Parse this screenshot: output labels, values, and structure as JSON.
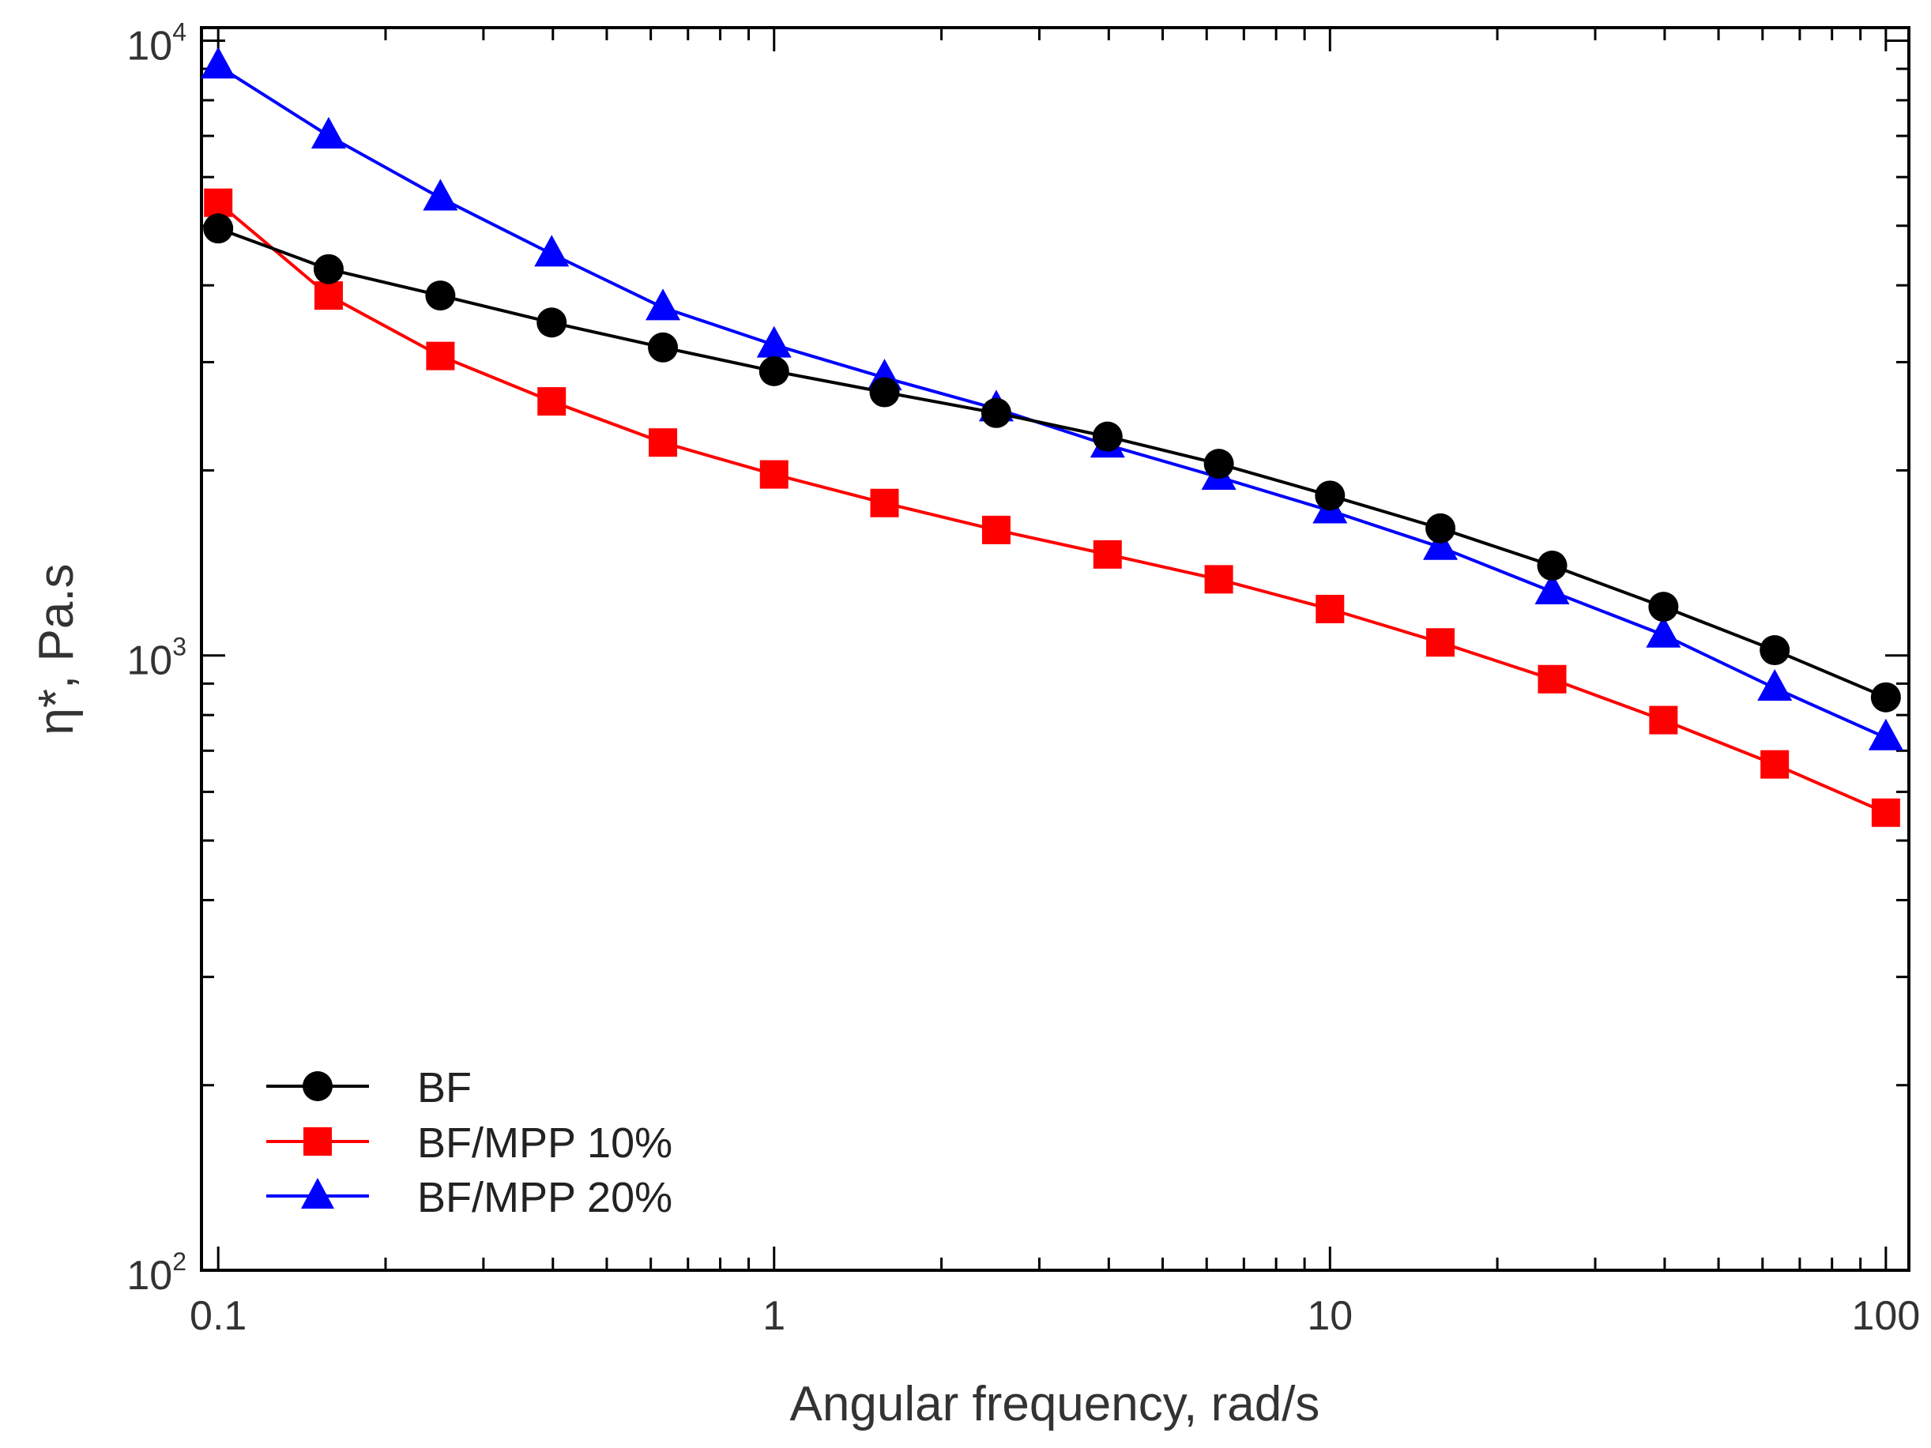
{
  "chart_data": {
    "type": "line",
    "title": "",
    "xlabel": "Angular frequency, rad/s",
    "ylabel": "η*,  Pa.s",
    "xscale": "log",
    "yscale": "log",
    "xlim": [
      0.0933,
      110
    ],
    "ylim": [
      100,
      10500
    ],
    "grid": false,
    "legend_position": "bottom-left",
    "x_ticks": [
      {
        "value": 0.1,
        "label": "0.1"
      },
      {
        "value": 1,
        "label": "1"
      },
      {
        "value": 10,
        "label": "10"
      },
      {
        "value": 100,
        "label": "100"
      }
    ],
    "y_ticks": [
      {
        "value": 100,
        "base": "10",
        "exp": "2"
      },
      {
        "value": 1000,
        "base": "10",
        "exp": "3"
      },
      {
        "value": 10000,
        "base": "10",
        "exp": "4"
      }
    ],
    "x": [
      0.1,
      0.158,
      0.251,
      0.398,
      0.631,
      1,
      1.58,
      2.51,
      3.98,
      6.31,
      10,
      15.8,
      25.1,
      39.8,
      63.1,
      100
    ],
    "series": [
      {
        "name": "BF",
        "color": "#000000",
        "marker": "circle",
        "values": [
          4950,
          4250,
          3850,
          3480,
          3170,
          2900,
          2680,
          2480,
          2270,
          2050,
          1820,
          1610,
          1400,
          1200,
          1020,
          855
        ]
      },
      {
        "name": "BF/MPP 10%",
        "color": "#ff0000",
        "marker": "square",
        "values": [
          5450,
          3850,
          3070,
          2590,
          2220,
          1970,
          1770,
          1600,
          1460,
          1330,
          1190,
          1050,
          915,
          785,
          665,
          555
        ]
      },
      {
        "name": "BF/MPP 20%",
        "color": "#0000ff",
        "marker": "triangle",
        "values": [
          9100,
          7000,
          5550,
          4500,
          3680,
          3200,
          2830,
          2520,
          2200,
          1950,
          1720,
          1500,
          1270,
          1080,
          885,
          735
        ]
      }
    ]
  }
}
